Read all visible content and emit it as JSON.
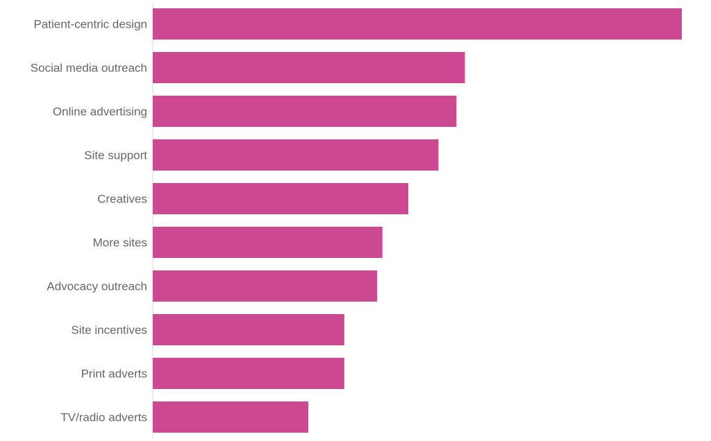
{
  "chart_data": {
    "type": "bar",
    "orientation": "horizontal",
    "title": "",
    "xlabel": "",
    "ylabel": "",
    "categories": [
      "Patient-centric design",
      "Social media outreach",
      "Online advertising",
      "Site support",
      "Creatives",
      "More sites",
      "Advocacy outreach",
      "Site incentives",
      "Print adverts",
      "TV/radio adverts"
    ],
    "values": [
      100,
      59,
      57.4,
      54,
      48.3,
      43.4,
      42.4,
      36.2,
      36.2,
      29.4
    ],
    "xlim": [
      0,
      100
    ],
    "grid": false,
    "legend": "none",
    "bar_color": "#cc4891"
  }
}
